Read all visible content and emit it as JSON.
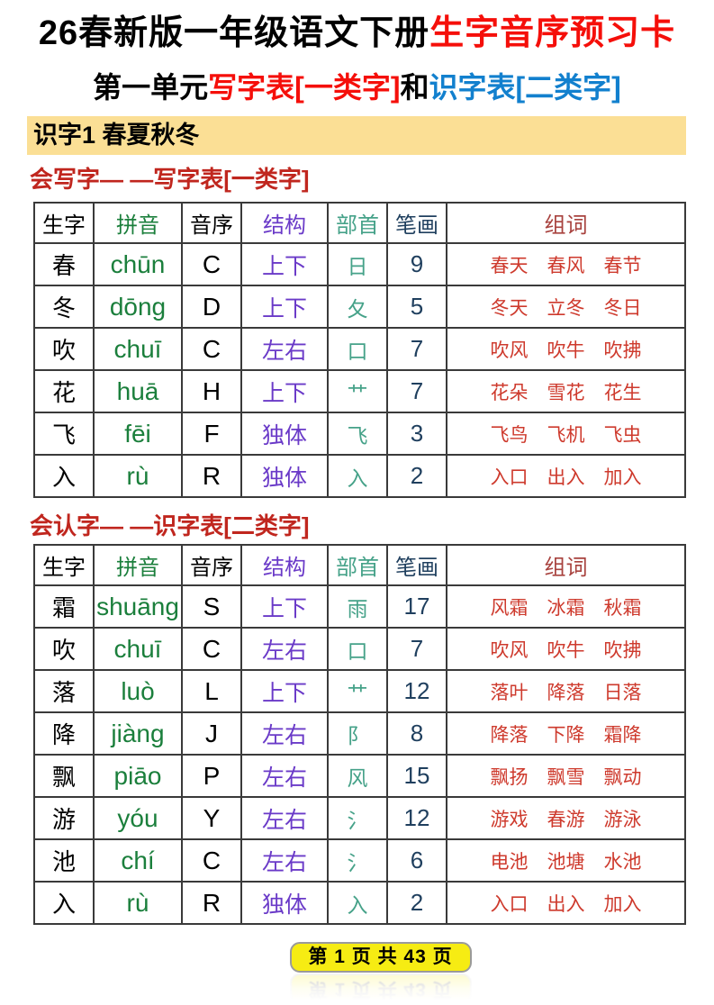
{
  "header": {
    "title_black": "26春新版一年级语文下册",
    "title_red": "生字音序预习卡",
    "subtitle_unit": "第一单元",
    "subtitle_write": "写字表[一类字]",
    "subtitle_and": "和",
    "subtitle_recognize": "识字表[二类字]",
    "lesson_banner": "识字1 春夏秋冬"
  },
  "sections": {
    "write_heading": "会写字— —写字表[一类字]",
    "recognize_heading": "会认字— —识字表[二类字]"
  },
  "tables": {
    "headers": [
      "生字",
      "拼音",
      "音序",
      "结构",
      "部首",
      "笔画",
      "组词"
    ],
    "write_rows": [
      {
        "char": "春",
        "pinyin": "chūn",
        "initial": "C",
        "structure": "上下",
        "radical": "日",
        "strokes": "9",
        "words": "春天　春风　春节"
      },
      {
        "char": "冬",
        "pinyin": "dōng",
        "initial": "D",
        "structure": "上下",
        "radical": "夂",
        "strokes": "5",
        "words": "冬天　立冬　冬日"
      },
      {
        "char": "吹",
        "pinyin": "chuī",
        "initial": "C",
        "structure": "左右",
        "radical": "口",
        "strokes": "7",
        "words": "吹风　吹牛　吹拂"
      },
      {
        "char": "花",
        "pinyin": "huā",
        "initial": "H",
        "structure": "上下",
        "radical": "艹",
        "strokes": "7",
        "words": "花朵　雪花　花生"
      },
      {
        "char": "飞",
        "pinyin": "fēi",
        "initial": "F",
        "structure": "独体",
        "radical": "飞",
        "strokes": "3",
        "words": "飞鸟　飞机　飞虫"
      },
      {
        "char": "入",
        "pinyin": "rù",
        "initial": "R",
        "structure": "独体",
        "radical": "入",
        "strokes": "2",
        "words": "入口　出入　加入"
      }
    ],
    "recognize_rows": [
      {
        "char": "霜",
        "pinyin": "shuāng",
        "initial": "S",
        "structure": "上下",
        "radical": "雨",
        "strokes": "17",
        "words": "风霜　冰霜　秋霜"
      },
      {
        "char": "吹",
        "pinyin": "chuī",
        "initial": "C",
        "structure": "左右",
        "radical": "口",
        "strokes": "7",
        "words": "吹风　吹牛　吹拂"
      },
      {
        "char": "落",
        "pinyin": "luò",
        "initial": "L",
        "structure": "上下",
        "radical": "艹",
        "strokes": "12",
        "words": "落叶　降落　日落"
      },
      {
        "char": "降",
        "pinyin": "jiàng",
        "initial": "J",
        "structure": "左右",
        "radical": "阝",
        "strokes": "8",
        "words": "降落　下降　霜降"
      },
      {
        "char": "飘",
        "pinyin": "piāo",
        "initial": "P",
        "structure": "左右",
        "radical": "风",
        "strokes": "15",
        "words": "飘扬　飘雪　飘动"
      },
      {
        "char": "游",
        "pinyin": "yóu",
        "initial": "Y",
        "structure": "左右",
        "radical": "氵",
        "strokes": "12",
        "words": "游戏　春游　游泳"
      },
      {
        "char": "池",
        "pinyin": "chí",
        "initial": "C",
        "structure": "左右",
        "radical": "氵",
        "strokes": "6",
        "words": "电池　池塘　水池"
      },
      {
        "char": "入",
        "pinyin": "rù",
        "initial": "R",
        "structure": "独体",
        "radical": "入",
        "strokes": "2",
        "words": "入口　出入　加入"
      }
    ]
  },
  "footer": {
    "page_indicator": "第 1 页 共 43 页"
  },
  "colors": {
    "title_red": "#F50F0A",
    "subtitle_blue": "#1280CE",
    "section_heading_red": "#C0261E",
    "banner_bg": "#FBDF95",
    "pinyin_green": "#1B7F3C",
    "structure_purple": "#6A3AC8",
    "radical_teal": "#46A289",
    "strokes_navy": "#1F3F5E",
    "words_red": "#CE3A2D",
    "words_header_red": "#A8423E",
    "badge_yellow": "#F6EC13"
  }
}
